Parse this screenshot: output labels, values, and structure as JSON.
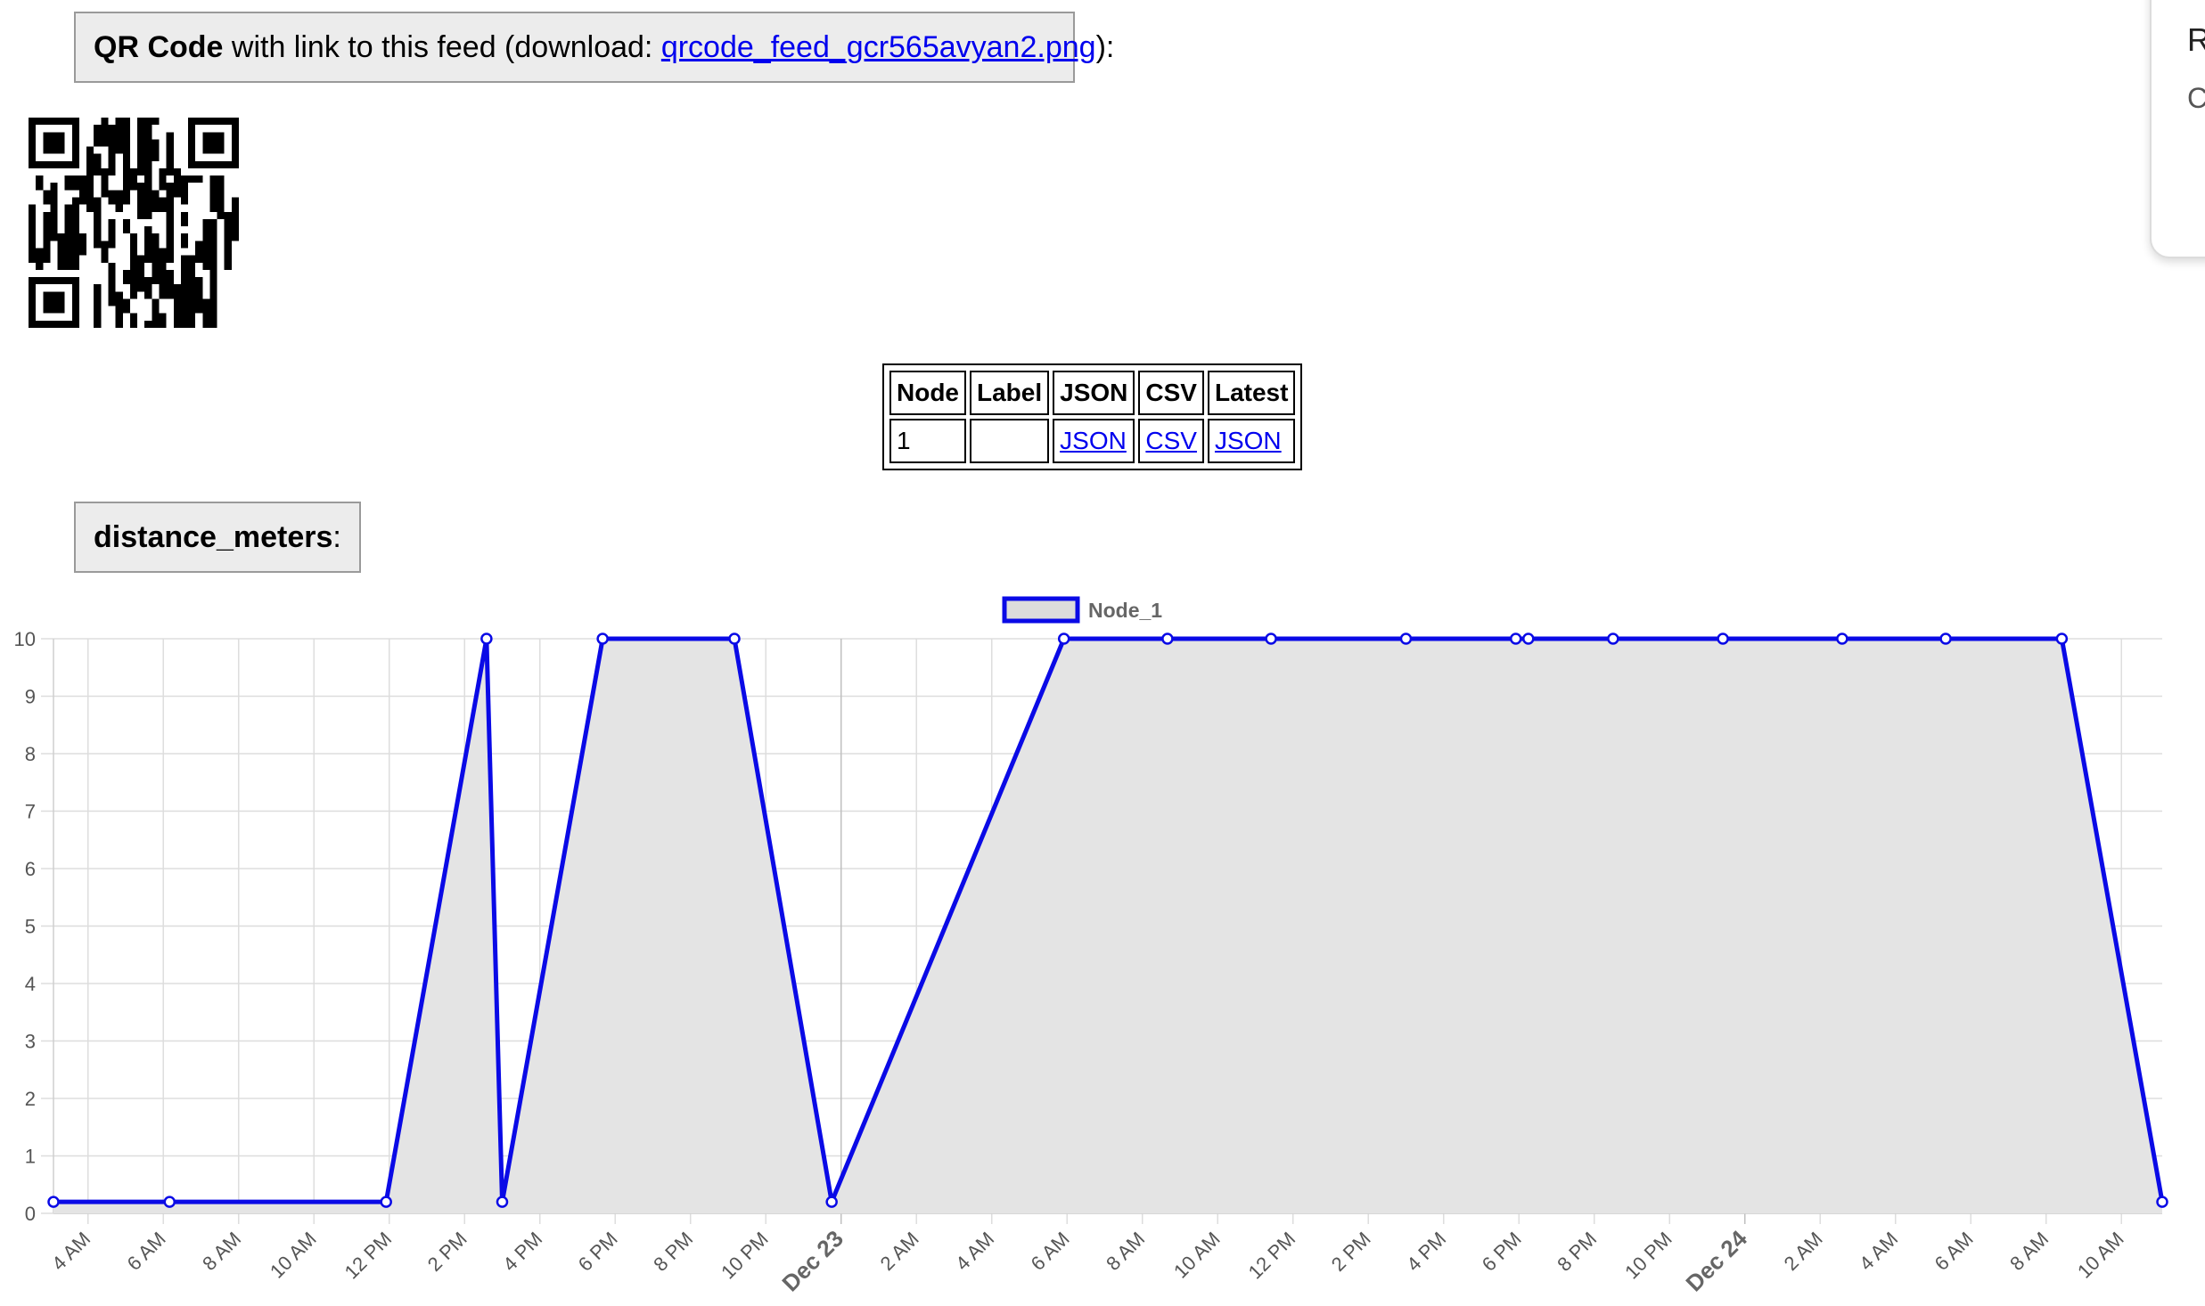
{
  "qr_section": {
    "label_bold": "QR Code",
    "label_text": " with link to this feed (download: ",
    "download_link": "qrcode_feed_gcr565avyan2.png",
    "label_end": "):"
  },
  "feeds_table": {
    "headers": [
      "Node",
      "Label",
      "JSON",
      "CSV",
      "Latest"
    ],
    "rows": [
      {
        "node": "1",
        "label": "",
        "json": "JSON",
        "csv": "CSV",
        "latest": "JSON"
      }
    ]
  },
  "metric": {
    "name": "distance_meters",
    "suffix": ":"
  },
  "side_card": {
    "letter_top": "R",
    "letter_bottom": "C"
  },
  "colors": {
    "line": "#0a0ae6",
    "fill": "#e4e4e4",
    "grid": "#dddddd",
    "link": "#0000ee"
  },
  "chart_data": {
    "type": "area",
    "legend": "Node_1",
    "legend_position": "top-center",
    "grid": true,
    "ylim": [
      0,
      10
    ],
    "y_ticks": [
      "0",
      "1",
      "2",
      "3",
      "4",
      "5",
      "6",
      "7",
      "8",
      "9",
      "10"
    ],
    "x_range": [
      "Dec 22 03:05",
      "Dec 24 11:05"
    ],
    "x_ticks": [
      {
        "t": "Dec 22 04:00",
        "label": "4 AM"
      },
      {
        "t": "Dec 22 06:00",
        "label": "6 AM"
      },
      {
        "t": "Dec 22 08:00",
        "label": "8 AM"
      },
      {
        "t": "Dec 22 10:00",
        "label": "10 AM"
      },
      {
        "t": "Dec 22 12:00",
        "label": "12 PM"
      },
      {
        "t": "Dec 22 14:00",
        "label": "2 PM"
      },
      {
        "t": "Dec 22 16:00",
        "label": "4 PM"
      },
      {
        "t": "Dec 22 18:00",
        "label": "6 PM"
      },
      {
        "t": "Dec 22 20:00",
        "label": "8 PM"
      },
      {
        "t": "Dec 22 22:00",
        "label": "10 PM"
      },
      {
        "t": "Dec 23 00:00",
        "label": "Dec 23",
        "major": true
      },
      {
        "t": "Dec 23 02:00",
        "label": "2 AM"
      },
      {
        "t": "Dec 23 04:00",
        "label": "4 AM"
      },
      {
        "t": "Dec 23 06:00",
        "label": "6 AM"
      },
      {
        "t": "Dec 23 08:00",
        "label": "8 AM"
      },
      {
        "t": "Dec 23 10:00",
        "label": "10 AM"
      },
      {
        "t": "Dec 23 12:00",
        "label": "12 PM"
      },
      {
        "t": "Dec 23 14:00",
        "label": "2 PM"
      },
      {
        "t": "Dec 23 16:00",
        "label": "4 PM"
      },
      {
        "t": "Dec 23 18:00",
        "label": "6 PM"
      },
      {
        "t": "Dec 23 20:00",
        "label": "8 PM"
      },
      {
        "t": "Dec 23 22:00",
        "label": "10 PM"
      },
      {
        "t": "Dec 24 00:00",
        "label": "Dec 24",
        "major": true
      },
      {
        "t": "Dec 24 02:00",
        "label": "2 AM"
      },
      {
        "t": "Dec 24 04:00",
        "label": "4 AM"
      },
      {
        "t": "Dec 24 06:00",
        "label": "6 AM"
      },
      {
        "t": "Dec 24 08:00",
        "label": "8 AM"
      },
      {
        "t": "Dec 24 10:00",
        "label": "10 AM"
      }
    ],
    "series": [
      {
        "name": "Node_1",
        "points": [
          {
            "t": "Dec 22 03:05",
            "y": 0.2
          },
          {
            "t": "Dec 22 06:10",
            "y": 0.2
          },
          {
            "t": "Dec 22 11:55",
            "y": 0.2
          },
          {
            "t": "Dec 22 14:35",
            "y": 10
          },
          {
            "t": "Dec 22 15:00",
            "y": 0.2
          },
          {
            "t": "Dec 22 17:40",
            "y": 10
          },
          {
            "t": "Dec 22 21:10",
            "y": 10
          },
          {
            "t": "Dec 22 23:45",
            "y": 0.2
          },
          {
            "t": "Dec 23 05:55",
            "y": 10
          },
          {
            "t": "Dec 23 08:40",
            "y": 10
          },
          {
            "t": "Dec 23 11:25",
            "y": 10
          },
          {
            "t": "Dec 23 15:00",
            "y": 10
          },
          {
            "t": "Dec 23 17:55",
            "y": 10
          },
          {
            "t": "Dec 23 18:15",
            "y": 10
          },
          {
            "t": "Dec 23 20:30",
            "y": 10
          },
          {
            "t": "Dec 23 23:25",
            "y": 10
          },
          {
            "t": "Dec 24 02:35",
            "y": 10
          },
          {
            "t": "Dec 24 05:20",
            "y": 10
          },
          {
            "t": "Dec 24 08:25",
            "y": 10
          },
          {
            "t": "Dec 24 11:05",
            "y": 0.2
          }
        ]
      }
    ]
  }
}
